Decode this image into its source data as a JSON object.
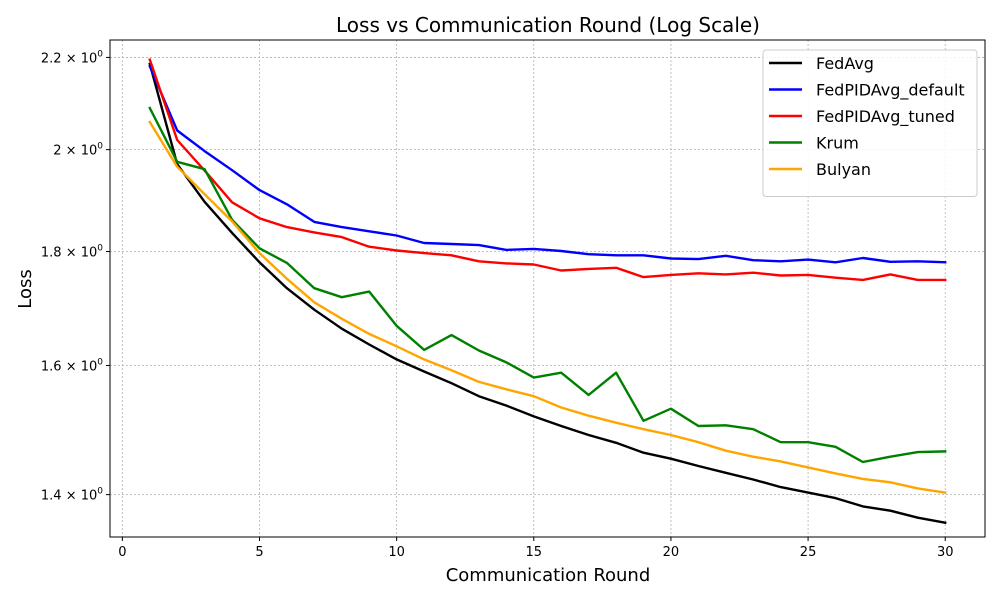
{
  "chart_data": {
    "type": "line",
    "title": "Loss vs Communication Round (Log Scale)",
    "xlabel": "Communication Round",
    "ylabel": "Loss",
    "xlim": [
      -0.45,
      31.45
    ],
    "ylim": [
      1.34,
      2.24
    ],
    "y_scale": "log",
    "grid": true,
    "legend_position": "top-right",
    "x_ticks": [
      0,
      5,
      10,
      15,
      20,
      25,
      30
    ],
    "x_tick_labels": [
      "0",
      "5",
      "10",
      "15",
      "20",
      "25",
      "30"
    ],
    "y_ticks": [
      1.4,
      1.6,
      1.8,
      2.0,
      2.2
    ],
    "y_tick_labels": [
      {
        "base": "1.4 × 10",
        "exp": "0"
      },
      {
        "base": "1.6 × 10",
        "exp": "0"
      },
      {
        "base": "1.8 × 10",
        "exp": "0"
      },
      {
        "base": "2 × 10",
        "exp": "0"
      },
      {
        "base": "2.2 × 10",
        "exp": "0"
      }
    ],
    "x": [
      1,
      2,
      3,
      4,
      5,
      6,
      7,
      8,
      9,
      10,
      11,
      12,
      13,
      14,
      15,
      16,
      17,
      18,
      19,
      20,
      21,
      22,
      23,
      24,
      25,
      26,
      27,
      28,
      29,
      30
    ],
    "series": [
      {
        "name": "FedAvg",
        "color": "#000000",
        "values": [
          2.185,
          1.97,
          1.895,
          1.835,
          1.78,
          1.733,
          1.695,
          1.662,
          1.635,
          1.61,
          1.59,
          1.571,
          1.55,
          1.535,
          1.518,
          1.503,
          1.489,
          1.477,
          1.462,
          1.453,
          1.442,
          1.432,
          1.422,
          1.411,
          1.403,
          1.395,
          1.383,
          1.377,
          1.367,
          1.36
        ]
      },
      {
        "name": "FedPIDAvg_default",
        "color": "#0000ff",
        "values": [
          2.18,
          2.04,
          1.997,
          1.958,
          1.918,
          1.89,
          1.856,
          1.846,
          1.838,
          1.83,
          1.816,
          1.814,
          1.812,
          1.803,
          1.805,
          1.801,
          1.795,
          1.793,
          1.793,
          1.787,
          1.786,
          1.792,
          1.784,
          1.782,
          1.785,
          1.78,
          1.788,
          1.781,
          1.782,
          1.78
        ]
      },
      {
        "name": "FedPIDAvg_tuned",
        "color": "#ff0000",
        "values": [
          2.195,
          2.02,
          1.957,
          1.894,
          1.863,
          1.846,
          1.836,
          1.827,
          1.809,
          1.802,
          1.797,
          1.793,
          1.782,
          1.778,
          1.776,
          1.765,
          1.768,
          1.77,
          1.753,
          1.757,
          1.76,
          1.758,
          1.761,
          1.756,
          1.757,
          1.752,
          1.748,
          1.758,
          1.748,
          1.748
        ]
      },
      {
        "name": "Krum",
        "color": "#008000",
        "values": [
          2.088,
          1.975,
          1.96,
          1.86,
          1.806,
          1.779,
          1.733,
          1.717,
          1.727,
          1.667,
          1.626,
          1.651,
          1.625,
          1.605,
          1.58,
          1.588,
          1.552,
          1.588,
          1.511,
          1.53,
          1.503,
          1.504,
          1.498,
          1.478,
          1.478,
          1.471,
          1.448,
          1.456,
          1.463,
          1.464
        ]
      },
      {
        "name": "Bulyan",
        "color": "#ffa500",
        "values": [
          2.058,
          1.965,
          1.91,
          1.857,
          1.797,
          1.75,
          1.708,
          1.679,
          1.653,
          1.632,
          1.61,
          1.592,
          1.573,
          1.561,
          1.55,
          1.532,
          1.519,
          1.508,
          1.498,
          1.489,
          1.478,
          1.465,
          1.456,
          1.449,
          1.44,
          1.431,
          1.423,
          1.418,
          1.409,
          1.403
        ]
      }
    ]
  }
}
